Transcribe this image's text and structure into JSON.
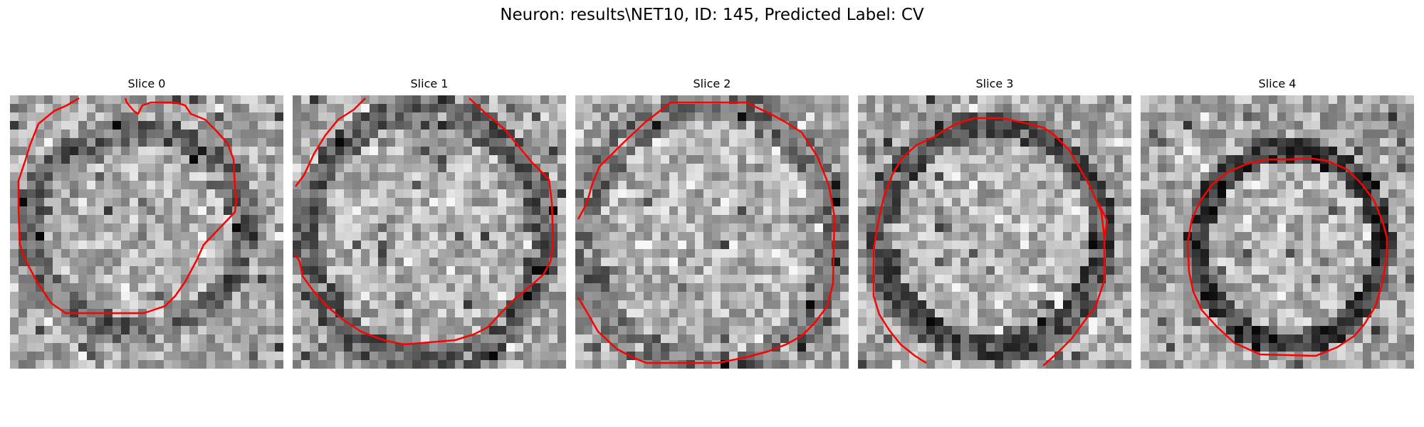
{
  "figure": {
    "title": "Neuron: results\\NET10, ID: 145, Predicted Label: CV"
  },
  "panels": [
    {
      "title": "Slice 0"
    },
    {
      "title": "Slice 1"
    },
    {
      "title": "Slice 2"
    },
    {
      "title": "Slice 3"
    },
    {
      "title": "Slice 4"
    }
  ],
  "colors": {
    "contour": "#ff0000",
    "background": "#ffffff"
  }
}
